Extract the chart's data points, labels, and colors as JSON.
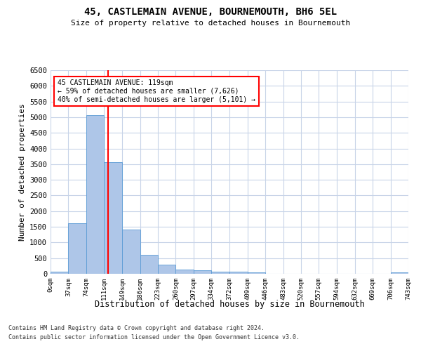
{
  "title": "45, CASTLEMAIN AVENUE, BOURNEMOUTH, BH6 5EL",
  "subtitle": "Size of property relative to detached houses in Bournemouth",
  "xlabel": "Distribution of detached houses by size in Bournemouth",
  "ylabel": "Number of detached properties",
  "bar_color": "#aec6e8",
  "bar_edge_color": "#5b9bd5",
  "grid_color": "#c8d4e8",
  "vline_x": 119,
  "vline_color": "red",
  "annotation_line1": "45 CASTLEMAIN AVENUE: 119sqm",
  "annotation_line2": "← 59% of detached houses are smaller (7,626)",
  "annotation_line3": "40% of semi-detached houses are larger (5,101) →",
  "annotation_box_color": "white",
  "annotation_box_edge": "red",
  "footnote1": "Contains HM Land Registry data © Crown copyright and database right 2024.",
  "footnote2": "Contains public sector information licensed under the Open Government Licence v3.0.",
  "bin_edges": [
    0,
    37,
    74,
    111,
    149,
    186,
    223,
    260,
    297,
    334,
    372,
    409,
    446,
    483,
    520,
    557,
    594,
    632,
    669,
    706,
    743
  ],
  "bar_heights": [
    75,
    1625,
    5060,
    3570,
    1410,
    615,
    290,
    145,
    110,
    75,
    65,
    55,
    0,
    0,
    0,
    0,
    0,
    0,
    0,
    55
  ],
  "xlim": [
    0,
    743
  ],
  "ylim": [
    0,
    6500
  ],
  "yticks": [
    0,
    500,
    1000,
    1500,
    2000,
    2500,
    3000,
    3500,
    4000,
    4500,
    5000,
    5500,
    6000,
    6500
  ],
  "xtick_labels": [
    "0sqm",
    "37sqm",
    "74sqm",
    "111sqm",
    "149sqm",
    "186sqm",
    "223sqm",
    "260sqm",
    "297sqm",
    "334sqm",
    "372sqm",
    "409sqm",
    "446sqm",
    "483sqm",
    "520sqm",
    "557sqm",
    "594sqm",
    "632sqm",
    "669sqm",
    "706sqm",
    "743sqm"
  ],
  "xtick_positions": [
    0,
    37,
    74,
    111,
    149,
    186,
    223,
    260,
    297,
    334,
    372,
    409,
    446,
    483,
    520,
    557,
    594,
    632,
    669,
    706,
    743
  ],
  "figsize": [
    6.0,
    5.0
  ],
  "dpi": 100
}
